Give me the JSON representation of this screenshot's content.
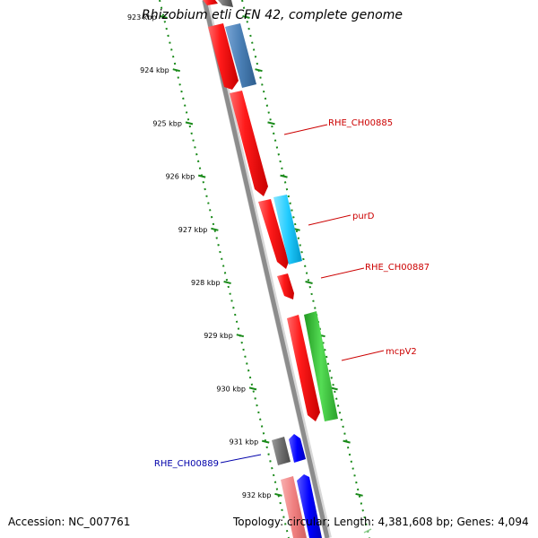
{
  "title": "Rhizobium etli CFN 42, complete genome",
  "footer": {
    "accession": "Accession: NC_007761",
    "summary": "Topology: circular; Length: 4,381,608 bp; Genes: 4,094"
  },
  "ruler": [
    {
      "label": "923 kbp",
      "kbp": 923
    },
    {
      "label": "924 kbp",
      "kbp": 924
    },
    {
      "label": "925 kbp",
      "kbp": 925
    },
    {
      "label": "926 kbp",
      "kbp": 926
    },
    {
      "label": "927 kbp",
      "kbp": 927
    },
    {
      "label": "928 kbp",
      "kbp": 928
    },
    {
      "label": "929 kbp",
      "kbp": 929
    },
    {
      "label": "930 kbp",
      "kbp": 930
    },
    {
      "label": "931 kbp",
      "kbp": 931
    },
    {
      "label": "932 kbp",
      "kbp": 932
    }
  ],
  "genes": [
    {
      "name": "RHE_CH00885",
      "label_color": "#cc0000"
    },
    {
      "name": "purD",
      "label_color": "#cc0000"
    },
    {
      "name": "RHE_CH00887",
      "label_color": "#cc0000"
    },
    {
      "name": "mcpV2",
      "label_color": "#cc0000"
    },
    {
      "name": "RHE_CH00889",
      "label_color": "#0000aa"
    }
  ],
  "colors": {
    "backbone": "#8c8c8c",
    "ruler": "#1a8a1a",
    "cds_red": "#ff1a1a",
    "cds_blue": "#4a7fb5",
    "cds_cyan": "#22ccff",
    "cds_green": "#33bb33",
    "cds_gray": "#6e6e6e",
    "cds_darkblue": "#0000ff",
    "cds_pink": "#f08080"
  }
}
